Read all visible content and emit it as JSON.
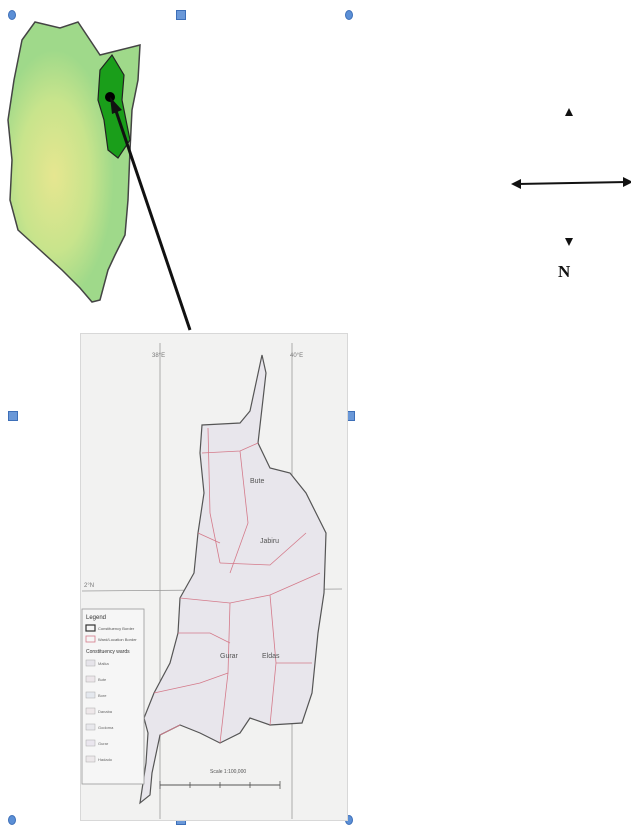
{
  "compass": {
    "north_label": "N"
  },
  "legend": {
    "title": "Legend",
    "items": [
      "Constituency Border",
      "Ward/Location Border"
    ],
    "section_title": "Constituency wards",
    "wards": [
      "Malka",
      "Bute",
      "Bore",
      "Danaba",
      "Godoma",
      "Gurar",
      "Hadado"
    ]
  },
  "map_labels": {
    "region_north": "Bute",
    "region_center": "Jabiru",
    "region_south_1": "Gurar",
    "region_south_2": "Eldas",
    "scale": "Scale 1:100,000",
    "meridian_left": "38°E",
    "meridian_right": "40°E",
    "parallel": "2°N"
  },
  "colors": {
    "kenya_land": "#9fd98a",
    "highland": "#d9e58f",
    "highlight_county": "#1a9e1a",
    "border": "#333333",
    "ward_line": "#d47a8a"
  }
}
